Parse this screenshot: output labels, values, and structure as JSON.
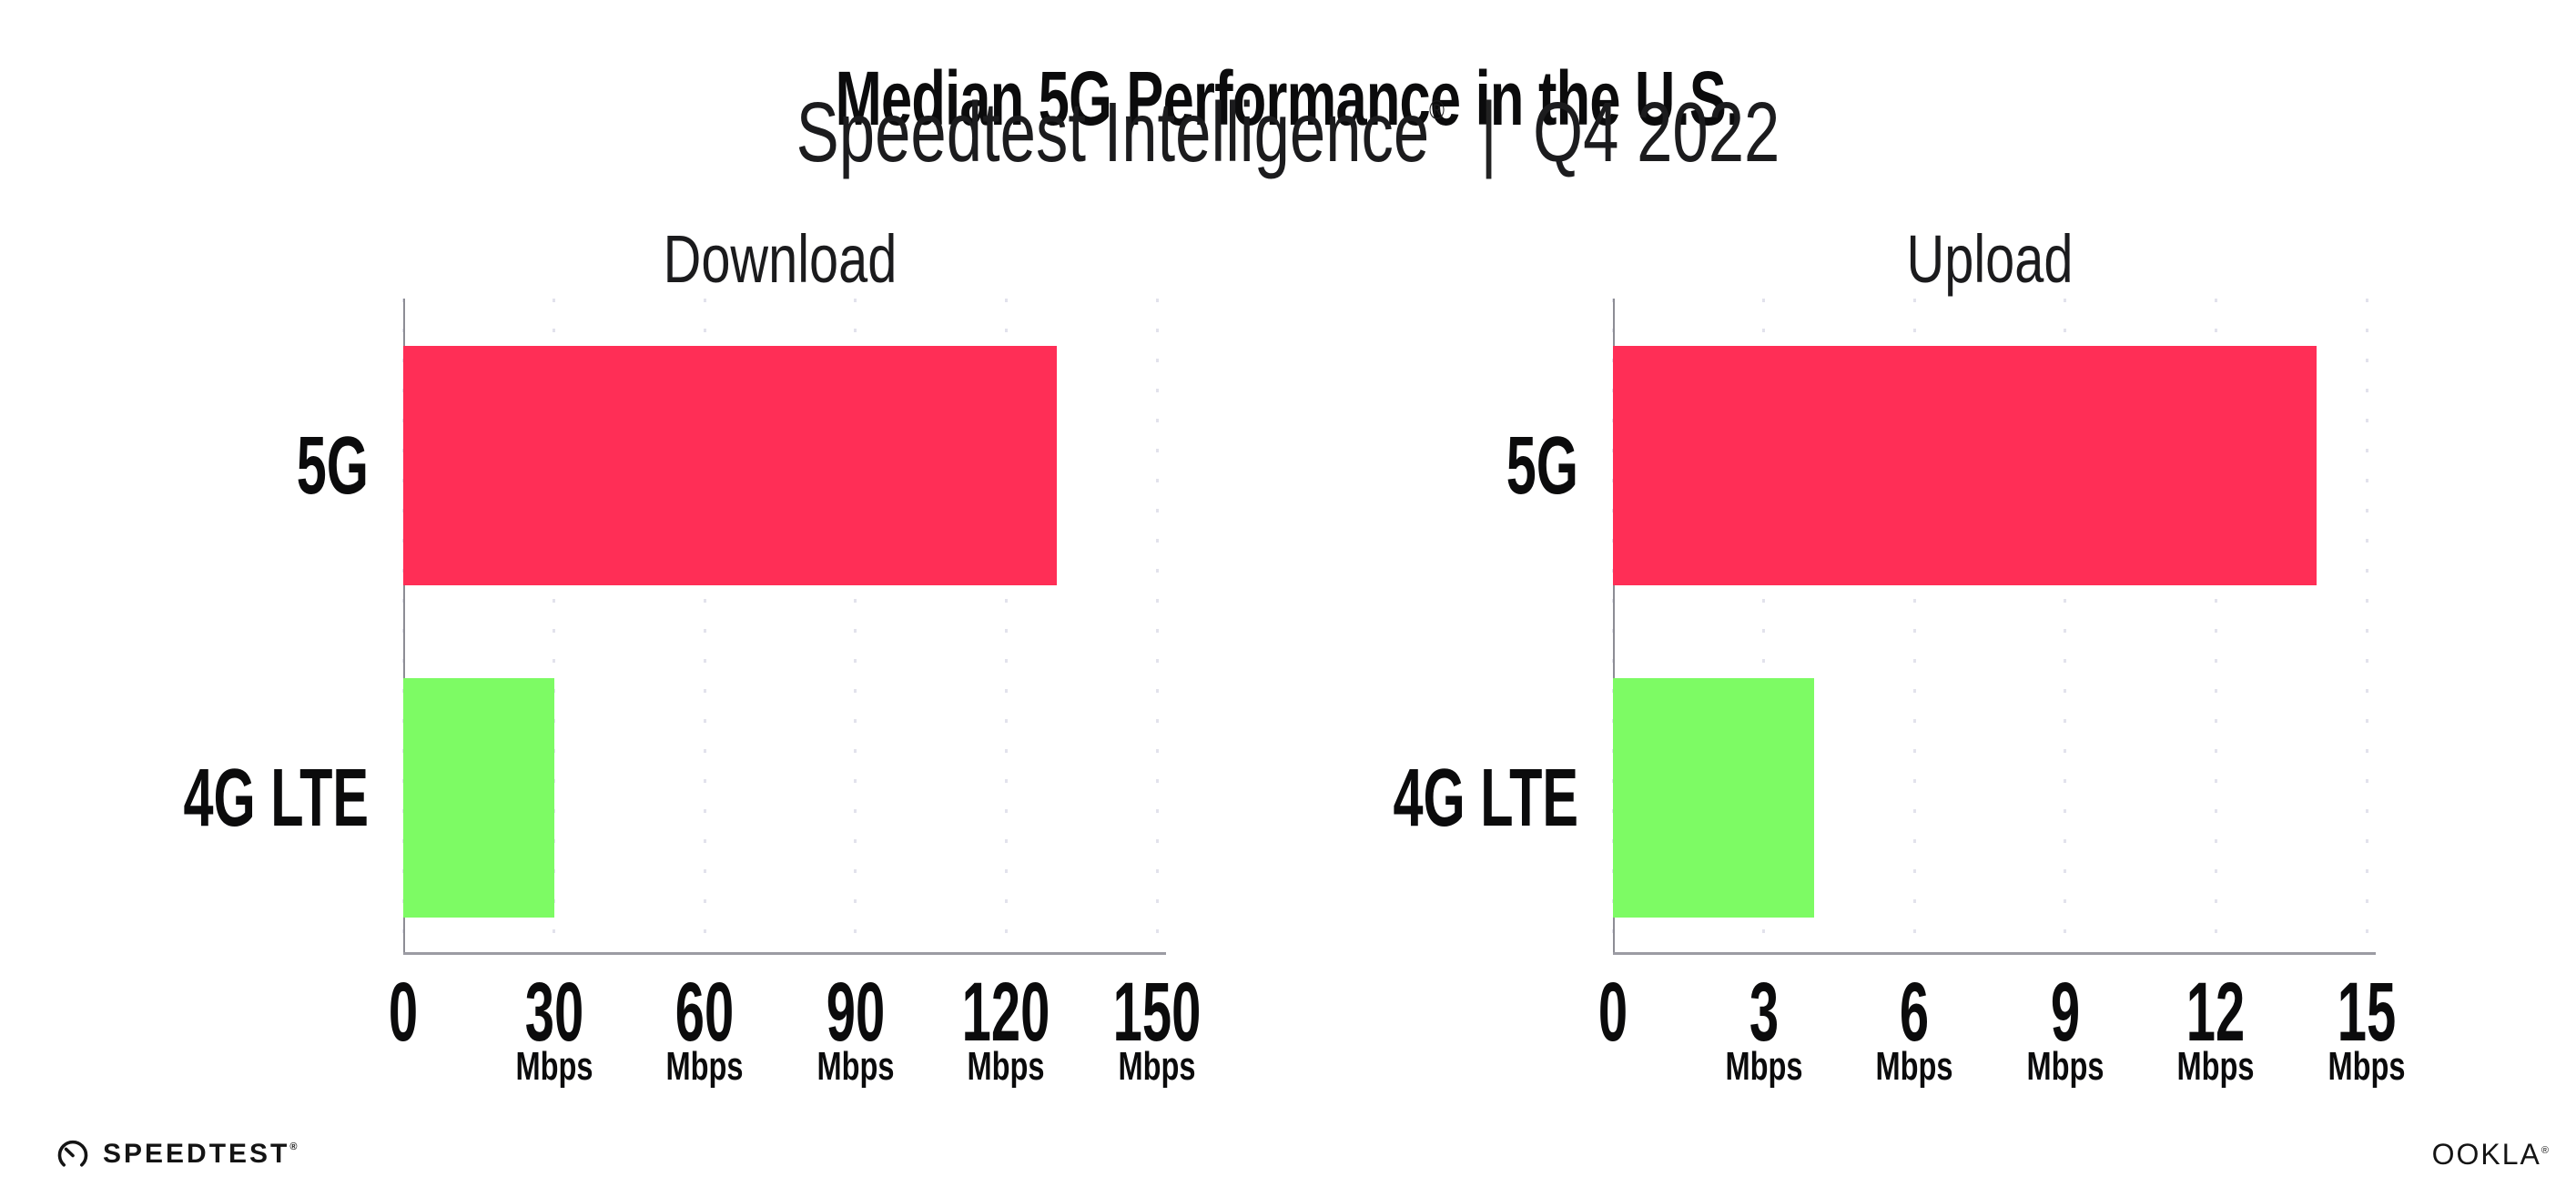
{
  "header": {
    "title": "Median 5G Performance in the U.S.",
    "subtitle_brand": "Speedtest Intelligence",
    "subtitle_mark": "®",
    "subtitle_separator": "|",
    "subtitle_period": "Q4 2022"
  },
  "chart_data": [
    {
      "type": "bar",
      "orientation": "horizontal",
      "title": "Download",
      "categories": [
        "5G",
        "4G LTE"
      ],
      "values": [
        130,
        30
      ],
      "unit": "Mbps",
      "xlabel": "",
      "ylabel": "",
      "xlim": [
        0,
        150
      ],
      "xticks": [
        0,
        30,
        60,
        90,
        120,
        150
      ],
      "grid": "dotted-vertical",
      "legend": "none",
      "bar_colors": [
        "#FF2E56",
        "#7DFB64"
      ]
    },
    {
      "type": "bar",
      "orientation": "horizontal",
      "title": "Upload",
      "categories": [
        "5G",
        "4G LTE"
      ],
      "values": [
        14,
        4
      ],
      "unit": "Mbps",
      "xlabel": "",
      "ylabel": "",
      "xlim": [
        0,
        15
      ],
      "xticks": [
        0,
        3,
        6,
        9,
        12,
        15
      ],
      "grid": "dotted-vertical",
      "legend": "none",
      "bar_colors": [
        "#FF2E56",
        "#7DFB64"
      ]
    }
  ],
  "footer": {
    "speedtest_logo": "SPEEDTEST",
    "speedtest_mark": "®",
    "ookla_logo": "OOKLA",
    "ookla_mark": "®"
  },
  "colors": {
    "bar_5g": "#FF2E56",
    "bar_4g_lte": "#7DFB64",
    "x_axis_line": "#9B9BA3",
    "y_axis_spine": "#8D8D95",
    "grid_dots": "#E2E2EC",
    "text": "#0B0B0C"
  }
}
